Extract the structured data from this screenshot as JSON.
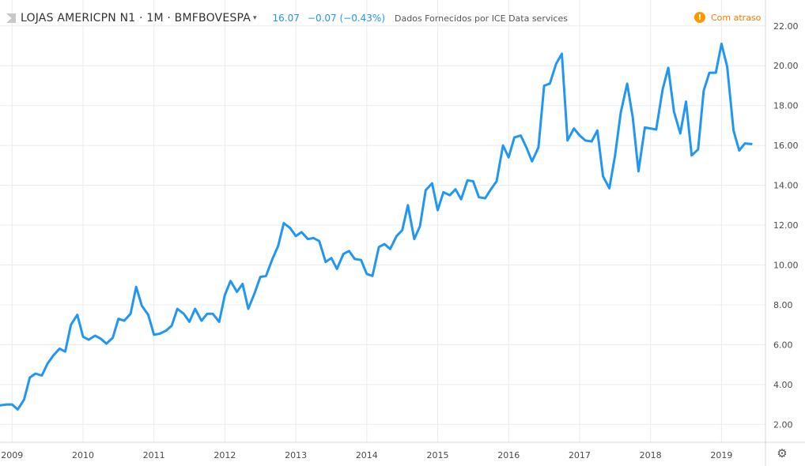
{
  "header": {
    "symbol": "LOJAS AMERICPN N1 · 1M · BMFBOVESPA",
    "last_value": "16.07",
    "change": "−0.07 (−0.43%)",
    "source": "Dados Fornecidos por ICE Data services",
    "delay_label": "Com atraso"
  },
  "icons": {
    "logo": "logo-icon",
    "dropdown": "chevron-down-icon",
    "delay": "exclamation-icon",
    "settings": "gear-icon"
  },
  "colors": {
    "line": "#2196f3",
    "accent": "#ff9800"
  },
  "chart_data": {
    "type": "line",
    "title": "",
    "xlabel": "",
    "ylabel": "",
    "xlim": [
      2008.83,
      2019.62
    ],
    "ylim": [
      1.1,
      23.3
    ],
    "yticks": [
      "2.00",
      "4.00",
      "6.00",
      "8.00",
      "10.00",
      "12.00",
      "14.00",
      "16.00",
      "18.00",
      "20.00",
      "22.00"
    ],
    "xticks": [
      "2009",
      "2010",
      "2011",
      "2012",
      "2013",
      "2014",
      "2015",
      "2016",
      "2017",
      "2018",
      "2019"
    ],
    "grid": true,
    "series": [
      {
        "values": [
          [
            2008.83,
            2.95
          ],
          [
            2008.92,
            3.0
          ],
          [
            2009.0,
            3.0
          ],
          [
            2009.08,
            2.75
          ],
          [
            2009.17,
            3.25
          ],
          [
            2009.25,
            4.35
          ],
          [
            2009.33,
            4.55
          ],
          [
            2009.42,
            4.45
          ],
          [
            2009.5,
            5.05
          ],
          [
            2009.58,
            5.45
          ],
          [
            2009.67,
            5.8
          ],
          [
            2009.75,
            5.65
          ],
          [
            2009.83,
            7.0
          ],
          [
            2009.92,
            7.5
          ],
          [
            2010.0,
            6.4
          ],
          [
            2010.08,
            6.25
          ],
          [
            2010.17,
            6.45
          ],
          [
            2010.25,
            6.3
          ],
          [
            2010.33,
            6.05
          ],
          [
            2010.42,
            6.35
          ],
          [
            2010.5,
            7.3
          ],
          [
            2010.58,
            7.2
          ],
          [
            2010.67,
            7.55
          ],
          [
            2010.75,
            8.9
          ],
          [
            2010.83,
            7.95
          ],
          [
            2010.92,
            7.5
          ],
          [
            2011.0,
            6.5
          ],
          [
            2011.08,
            6.55
          ],
          [
            2011.17,
            6.7
          ],
          [
            2011.25,
            6.95
          ],
          [
            2011.33,
            7.8
          ],
          [
            2011.42,
            7.55
          ],
          [
            2011.5,
            7.15
          ],
          [
            2011.58,
            7.8
          ],
          [
            2011.67,
            7.2
          ],
          [
            2011.75,
            7.55
          ],
          [
            2011.83,
            7.55
          ],
          [
            2011.92,
            7.15
          ],
          [
            2012.0,
            8.5
          ],
          [
            2012.08,
            9.2
          ],
          [
            2012.17,
            8.65
          ],
          [
            2012.25,
            9.05
          ],
          [
            2012.33,
            7.8
          ],
          [
            2012.42,
            8.6
          ],
          [
            2012.5,
            9.4
          ],
          [
            2012.58,
            9.45
          ],
          [
            2012.67,
            10.3
          ],
          [
            2012.75,
            10.95
          ],
          [
            2012.83,
            12.1
          ],
          [
            2012.92,
            11.85
          ],
          [
            2013.0,
            11.45
          ],
          [
            2013.08,
            11.65
          ],
          [
            2013.17,
            11.3
          ],
          [
            2013.25,
            11.35
          ],
          [
            2013.33,
            11.2
          ],
          [
            2013.42,
            10.15
          ],
          [
            2013.5,
            10.35
          ],
          [
            2013.58,
            9.8
          ],
          [
            2013.67,
            10.55
          ],
          [
            2013.75,
            10.7
          ],
          [
            2013.83,
            10.3
          ],
          [
            2013.92,
            10.25
          ],
          [
            2014.0,
            9.55
          ],
          [
            2014.08,
            9.45
          ],
          [
            2014.17,
            10.9
          ],
          [
            2014.25,
            11.05
          ],
          [
            2014.33,
            10.8
          ],
          [
            2014.42,
            11.45
          ],
          [
            2014.5,
            11.75
          ],
          [
            2014.58,
            13.0
          ],
          [
            2014.67,
            11.3
          ],
          [
            2014.75,
            11.95
          ],
          [
            2014.83,
            13.75
          ],
          [
            2014.92,
            14.1
          ],
          [
            2015.0,
            12.75
          ],
          [
            2015.08,
            13.65
          ],
          [
            2015.17,
            13.5
          ],
          [
            2015.25,
            13.8
          ],
          [
            2015.33,
            13.3
          ],
          [
            2015.42,
            14.25
          ],
          [
            2015.5,
            14.2
          ],
          [
            2015.58,
            13.4
          ],
          [
            2015.67,
            13.35
          ],
          [
            2015.75,
            13.8
          ],
          [
            2015.83,
            14.2
          ],
          [
            2015.92,
            16.0
          ],
          [
            2016.0,
            15.4
          ],
          [
            2016.08,
            16.4
          ],
          [
            2016.17,
            16.5
          ],
          [
            2016.25,
            15.9
          ],
          [
            2016.33,
            15.2
          ],
          [
            2016.42,
            15.9
          ],
          [
            2016.5,
            19.0
          ],
          [
            2016.58,
            19.1
          ],
          [
            2016.67,
            20.1
          ],
          [
            2016.75,
            20.6
          ],
          [
            2016.83,
            16.25
          ],
          [
            2016.92,
            16.85
          ],
          [
            2017.0,
            16.5
          ],
          [
            2017.08,
            16.25
          ],
          [
            2017.17,
            16.2
          ],
          [
            2017.25,
            16.75
          ],
          [
            2017.33,
            14.45
          ],
          [
            2017.42,
            13.85
          ],
          [
            2017.5,
            15.5
          ],
          [
            2017.58,
            17.65
          ],
          [
            2017.67,
            19.1
          ],
          [
            2017.75,
            17.4
          ],
          [
            2017.83,
            14.7
          ],
          [
            2017.92,
            16.9
          ],
          [
            2018.0,
            16.85
          ],
          [
            2018.08,
            16.8
          ],
          [
            2018.17,
            18.8
          ],
          [
            2018.25,
            19.9
          ],
          [
            2018.33,
            17.7
          ],
          [
            2018.42,
            16.6
          ],
          [
            2018.5,
            18.2
          ],
          [
            2018.58,
            15.5
          ],
          [
            2018.67,
            15.8
          ],
          [
            2018.75,
            18.75
          ],
          [
            2018.83,
            19.65
          ],
          [
            2018.92,
            19.65
          ],
          [
            2019.0,
            21.1
          ],
          [
            2019.08,
            19.95
          ],
          [
            2019.17,
            16.75
          ],
          [
            2019.25,
            15.75
          ],
          [
            2019.33,
            16.1
          ],
          [
            2019.42,
            16.07
          ]
        ]
      }
    ]
  }
}
